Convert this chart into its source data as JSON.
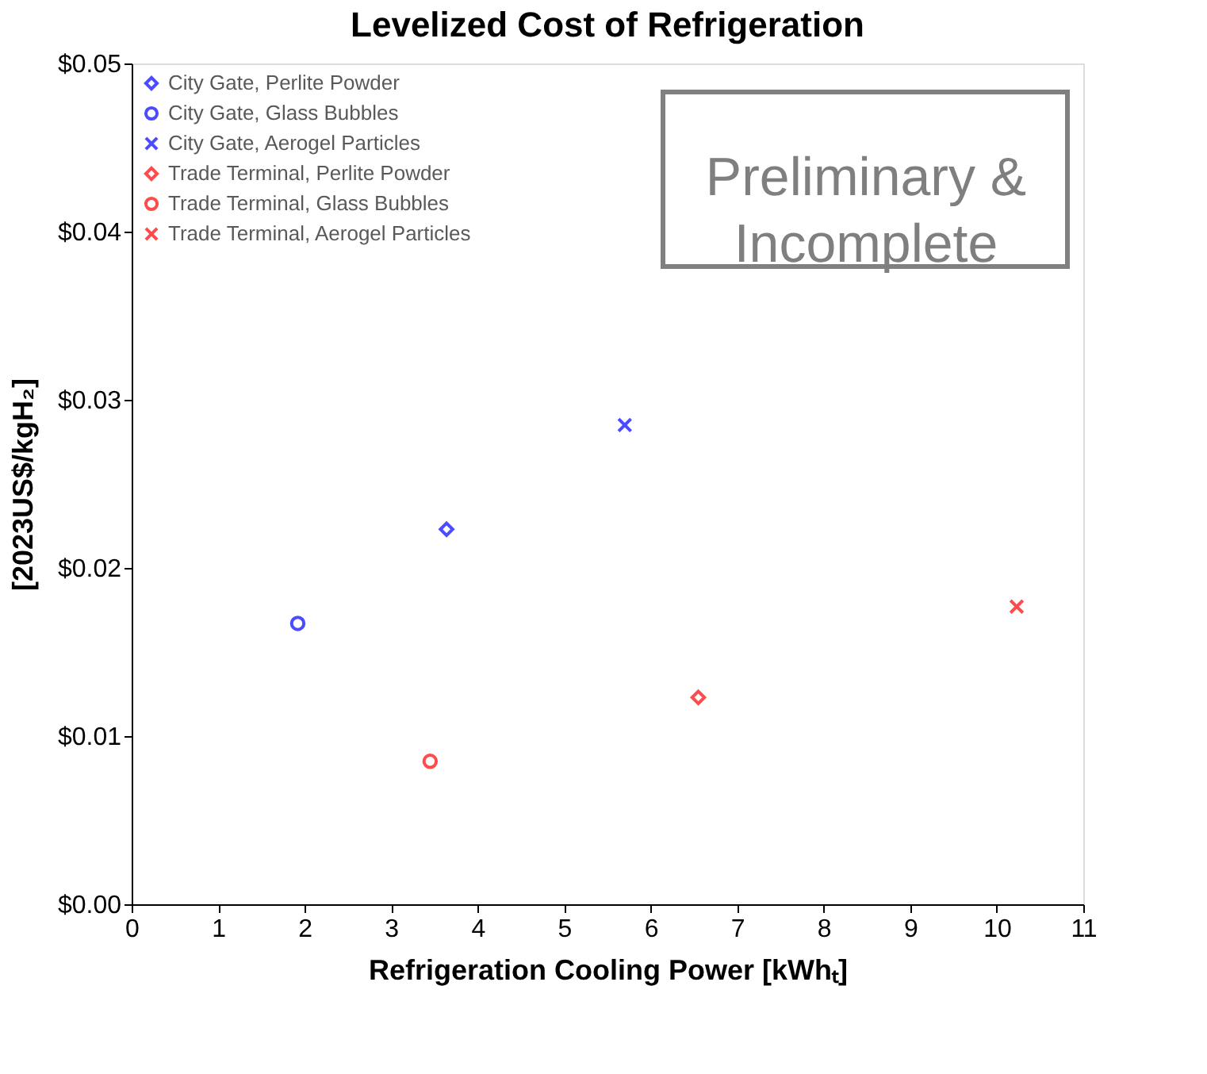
{
  "chart_data": {
    "type": "scatter",
    "title": "Levelized Cost of Refrigeration",
    "xlabel": "Refrigeration Cooling Power [kWhₜ]",
    "ylabel": "[2023US$/kgH₂]",
    "xlim": [
      0,
      11
    ],
    "xticks": [
      0,
      1,
      2,
      3,
      4,
      5,
      6,
      7,
      8,
      9,
      10,
      11
    ],
    "ylim": [
      0,
      0.05
    ],
    "yticks": [
      {
        "value": 0,
        "label": "$0.00"
      },
      {
        "value": 0.01,
        "label": "$0.01"
      },
      {
        "value": 0.02,
        "label": "$0.02"
      },
      {
        "value": 0.03,
        "label": "$0.03"
      },
      {
        "value": 0.04,
        "label": "$0.04"
      },
      {
        "value": 0.05,
        "label": "$0.05"
      }
    ],
    "grid": false,
    "legend": "top left",
    "annotations": [
      "Preliminary & Incomplete"
    ],
    "series": [
      {
        "name": "City Gate, Perlite Powder",
        "color": "#0000ff",
        "marker": "diamond",
        "x": [
          3.64
        ],
        "values": [
          0.0223
        ]
      },
      {
        "name": "City Gate, Glass Bubbles",
        "color": "#0000ff",
        "marker": "circle",
        "x": [
          1.92
        ],
        "values": [
          0.0167
        ]
      },
      {
        "name": "City Gate, Aerogel Particles",
        "color": "#0000ff",
        "marker": "cross",
        "x": [
          5.7
        ],
        "values": [
          0.0285
        ]
      },
      {
        "name": "Trade Terminal, Perlite Powder",
        "color": "#ff0000",
        "marker": "diamond",
        "x": [
          6.55
        ],
        "values": [
          0.0123
        ]
      },
      {
        "name": "Trade Terminal, Glass Bubbles",
        "color": "#ff0000",
        "marker": "circle",
        "x": [
          3.45
        ],
        "values": [
          0.0085
        ]
      },
      {
        "name": "Trade Terminal, Aerogel Particles",
        "color": "#ff0000",
        "marker": "cross",
        "x": [
          10.23
        ],
        "values": [
          0.0177
        ]
      }
    ]
  }
}
